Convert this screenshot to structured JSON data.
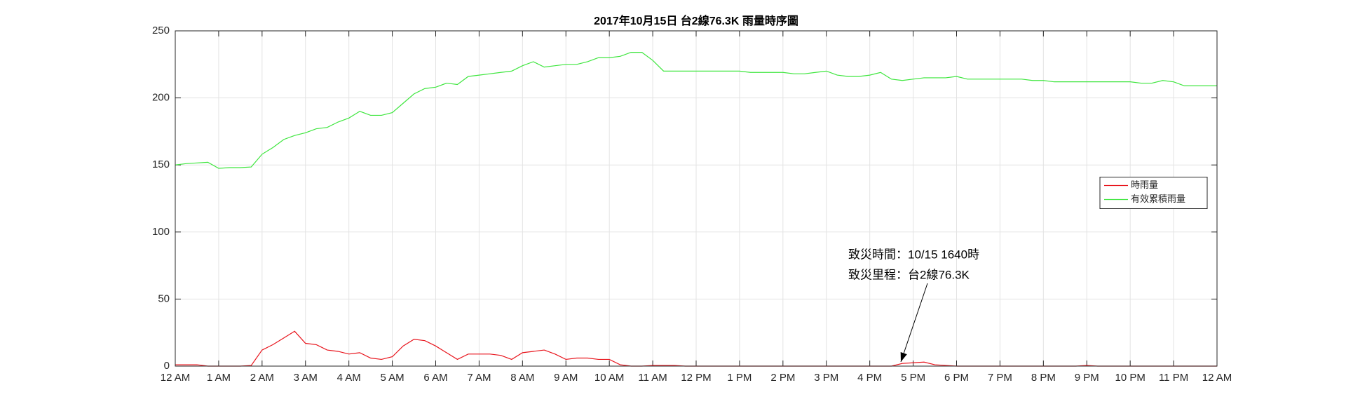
{
  "chart_data": {
    "type": "line",
    "title": "2017年10月15日 台2線76.3K 雨量時序圖",
    "x": [
      0,
      0.25,
      0.5,
      0.75,
      1,
      1.25,
      1.5,
      1.75,
      2,
      2.25,
      2.5,
      2.75,
      3,
      3.25,
      3.5,
      3.75,
      4,
      4.25,
      4.5,
      4.75,
      5,
      5.25,
      5.5,
      5.75,
      6,
      6.25,
      6.5,
      6.75,
      7,
      7.25,
      7.5,
      7.75,
      8,
      8.25,
      8.5,
      8.75,
      9,
      9.25,
      9.5,
      9.75,
      10,
      10.25,
      10.5,
      10.75,
      11,
      11.25,
      11.5,
      11.75,
      12,
      12.25,
      12.5,
      12.75,
      13,
      13.25,
      13.5,
      13.75,
      14,
      14.25,
      14.5,
      14.75,
      15,
      15.25,
      15.5,
      15.75,
      16,
      16.25,
      16.5,
      16.75,
      17,
      17.25,
      17.5,
      17.75,
      18,
      18.25,
      18.5,
      18.75,
      19,
      19.25,
      19.5,
      19.75,
      20,
      20.25,
      20.5,
      20.75,
      21,
      21.25,
      21.5,
      21.75,
      22,
      22.25,
      22.5,
      22.75,
      23,
      23.25,
      23.5,
      23.75,
      24
    ],
    "series": [
      {
        "name": "時雨量",
        "color": "#e8141c",
        "values": [
          1,
          1,
          1,
          0,
          0,
          0,
          0,
          0.5,
          12,
          16,
          21,
          26,
          17,
          16,
          12,
          11,
          9,
          10,
          6,
          5,
          7,
          15,
          20,
          19,
          15,
          10,
          5,
          9,
          9,
          9,
          8,
          5,
          10,
          11,
          12,
          9,
          5,
          6,
          6,
          5,
          5,
          1,
          0,
          0,
          0.5,
          0.5,
          0.5,
          0,
          0,
          0,
          0,
          0,
          0,
          0,
          0,
          0,
          0,
          0,
          0,
          0,
          0,
          0,
          0,
          0,
          0,
          0,
          0,
          2,
          2.5,
          3,
          1,
          0.5,
          0,
          0,
          0,
          0,
          0,
          0,
          0,
          0,
          0,
          0,
          0,
          0,
          0.5,
          0,
          0,
          0,
          0,
          0,
          0,
          0,
          0,
          0,
          0,
          0,
          0
        ]
      },
      {
        "name": "有效累積雨量",
        "color": "#3ee63e",
        "values": [
          150,
          151,
          151.5,
          152,
          147.5,
          148,
          148,
          148.5,
          158,
          163,
          169,
          172,
          174,
          177,
          178,
          182,
          185,
          190,
          187,
          187,
          189,
          196,
          203,
          207,
          208,
          211,
          210,
          216,
          217,
          218,
          219,
          220,
          224,
          227,
          223,
          224,
          225,
          225,
          227,
          230,
          230,
          231,
          234,
          234,
          228,
          220,
          220,
          220,
          220,
          220,
          220,
          220,
          220,
          219,
          219,
          219,
          219,
          218,
          218,
          219,
          220,
          217,
          216,
          216,
          217,
          219,
          214,
          213,
          214,
          215,
          215,
          215,
          216,
          214,
          214,
          214,
          214,
          214,
          214,
          213,
          213,
          212,
          212,
          212,
          212,
          212,
          212,
          212,
          212,
          211,
          211,
          213,
          212,
          209,
          209,
          209,
          209
        ]
      }
    ],
    "xlim": [
      0,
      24
    ],
    "xticks": [
      {
        "value": 0,
        "label": "12 AM"
      },
      {
        "value": 1,
        "label": "1 AM"
      },
      {
        "value": 2,
        "label": "2 AM"
      },
      {
        "value": 3,
        "label": "3 AM"
      },
      {
        "value": 4,
        "label": "4 AM"
      },
      {
        "value": 5,
        "label": "5 AM"
      },
      {
        "value": 6,
        "label": "6 AM"
      },
      {
        "value": 7,
        "label": "7 AM"
      },
      {
        "value": 8,
        "label": "8 AM"
      },
      {
        "value": 9,
        "label": "9 AM"
      },
      {
        "value": 10,
        "label": "10 AM"
      },
      {
        "value": 11,
        "label": "11 AM"
      },
      {
        "value": 12,
        "label": "12 PM"
      },
      {
        "value": 13,
        "label": "1 PM"
      },
      {
        "value": 14,
        "label": "2 PM"
      },
      {
        "value": 15,
        "label": "3 PM"
      },
      {
        "value": 16,
        "label": "4 PM"
      },
      {
        "value": 17,
        "label": "5 PM"
      },
      {
        "value": 18,
        "label": "6 PM"
      },
      {
        "value": 19,
        "label": "7 PM"
      },
      {
        "value": 20,
        "label": "8 PM"
      },
      {
        "value": 21,
        "label": "9 PM"
      },
      {
        "value": 22,
        "label": "10 PM"
      },
      {
        "value": 23,
        "label": "11 PM"
      },
      {
        "value": 24,
        "label": "12 AM"
      }
    ],
    "ylim": [
      0,
      250
    ],
    "yticks": [
      0,
      50,
      100,
      150,
      200,
      250
    ],
    "grid": true,
    "legend": "east",
    "annotations": [
      "致災時間：10/15 1640時",
      "致災里程：台2線76.3K"
    ]
  }
}
